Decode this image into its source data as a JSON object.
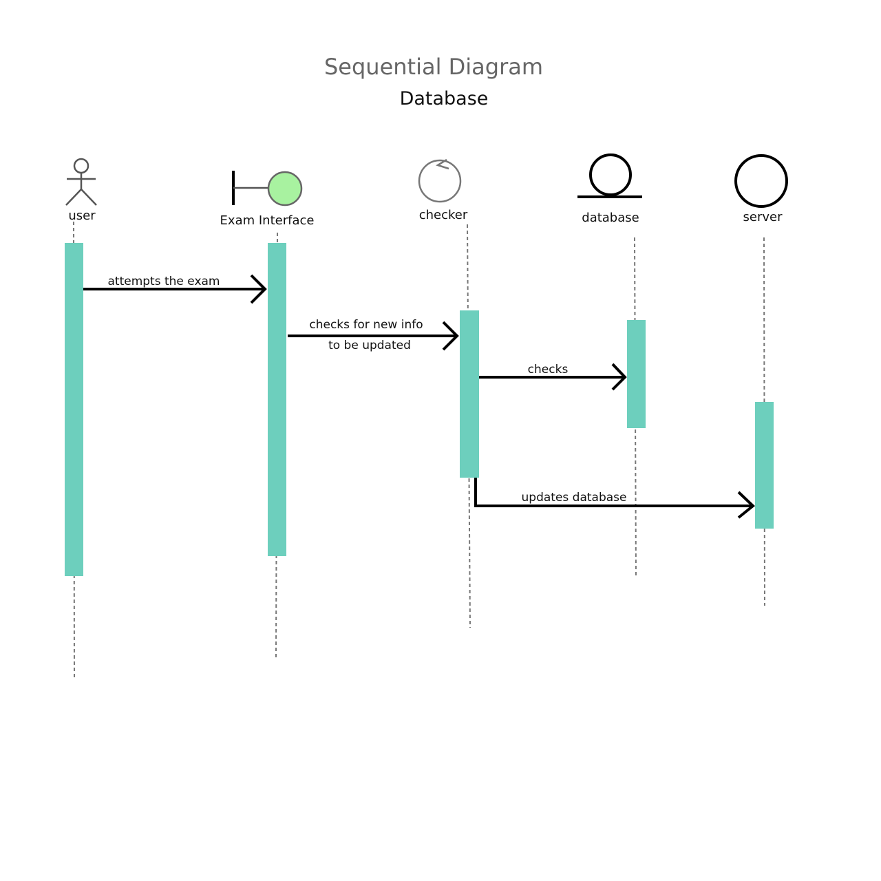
{
  "title": "Sequential Diagram",
  "subtitle": "Database",
  "colors": {
    "activation": "#6dcfbd",
    "boundary_fill": "#a8f2a0",
    "line": "#000000",
    "lifeline": "#777777"
  },
  "participants": [
    {
      "id": "user",
      "label": "user",
      "icon": "actor-icon"
    },
    {
      "id": "exam-interface",
      "label": "Exam Interface",
      "icon": "boundary-icon"
    },
    {
      "id": "checker",
      "label": "checker",
      "icon": "control-icon"
    },
    {
      "id": "database",
      "label": "database",
      "icon": "entity-icon"
    },
    {
      "id": "server",
      "label": "server",
      "icon": "circle-icon"
    }
  ],
  "messages": [
    {
      "from": "user",
      "to": "exam-interface",
      "lines": [
        "attempts the exam"
      ]
    },
    {
      "from": "exam-interface",
      "to": "checker",
      "lines": [
        "checks for new info",
        "to be updated"
      ]
    },
    {
      "from": "checker",
      "to": "database",
      "lines": [
        "checks"
      ]
    },
    {
      "from": "checker",
      "to": "server",
      "lines": [
        "updates database"
      ]
    }
  ]
}
